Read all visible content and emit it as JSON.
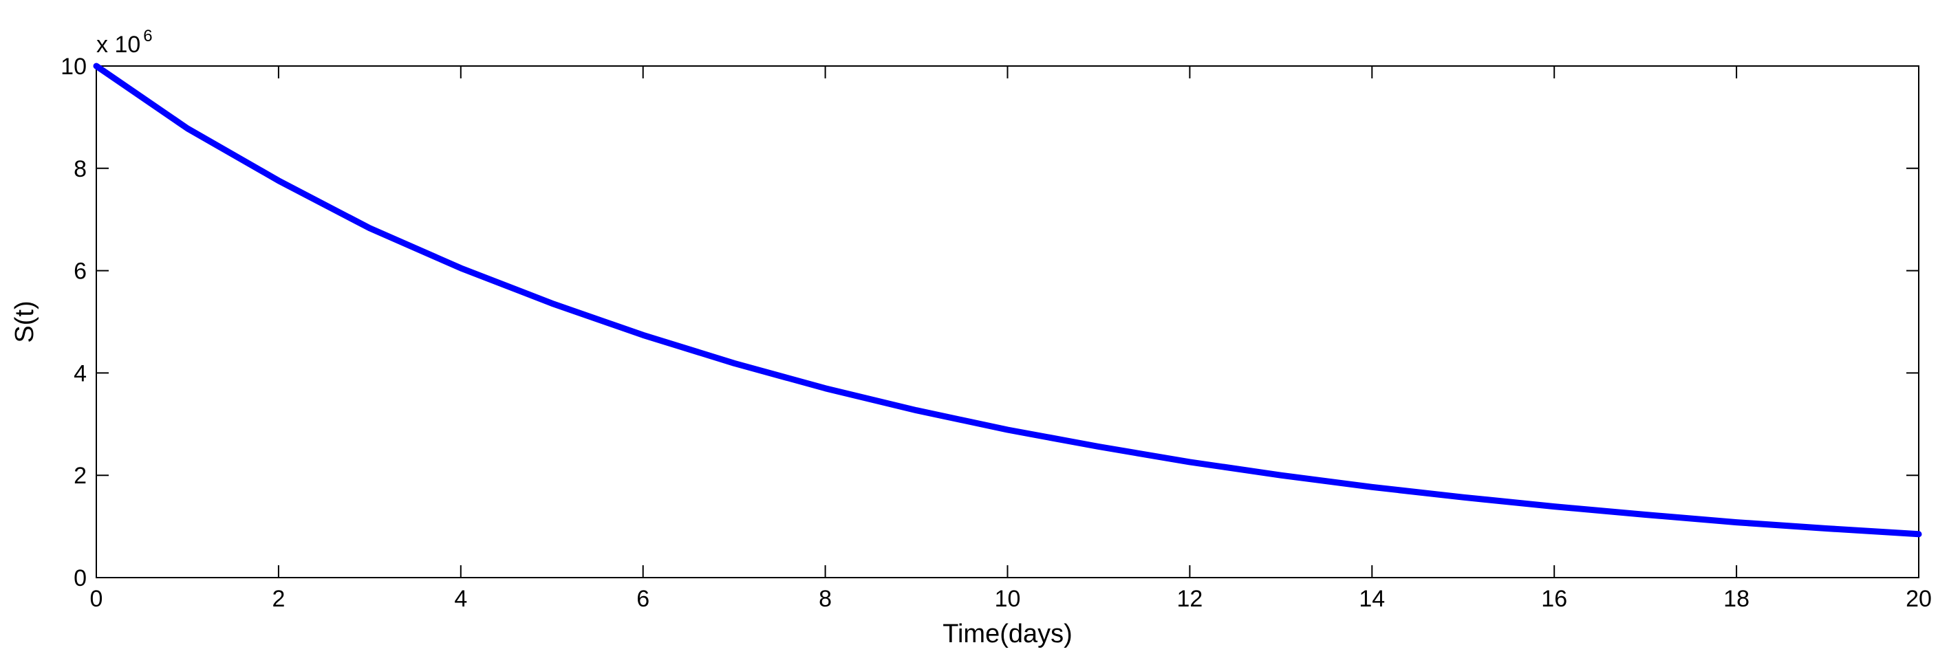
{
  "chart_data": {
    "type": "line",
    "xlabel": "Time(days)",
    "ylabel": "S(t)",
    "y_exponent_base": "x 10",
    "y_exponent_power": "6",
    "xlim": [
      0,
      20
    ],
    "ylim": [
      0,
      10
    ],
    "xticks": [
      0,
      2,
      4,
      6,
      8,
      10,
      12,
      14,
      16,
      18,
      20
    ],
    "yticks": [
      0,
      2,
      4,
      6,
      8,
      10
    ],
    "xtick_labels": [
      "0",
      "2",
      "4",
      "6",
      "8",
      "10",
      "12",
      "14",
      "16",
      "18",
      "20"
    ],
    "ytick_labels": [
      "0",
      "2",
      "4",
      "6",
      "8",
      "10"
    ],
    "grid": false,
    "line_color": "#0000ff",
    "series": [
      {
        "x": [
          0,
          1,
          2,
          3,
          4,
          5,
          6,
          7,
          8,
          9,
          10,
          11,
          12,
          13,
          14,
          15,
          16,
          17,
          18,
          19,
          20
        ],
        "values": [
          10.0,
          8.78,
          7.76,
          6.83,
          6.05,
          5.36,
          4.74,
          4.19,
          3.7,
          3.27,
          2.89,
          2.56,
          2.26,
          2.0,
          1.77,
          1.57,
          1.39,
          1.23,
          1.08,
          0.96,
          0.85
        ]
      }
    ]
  }
}
